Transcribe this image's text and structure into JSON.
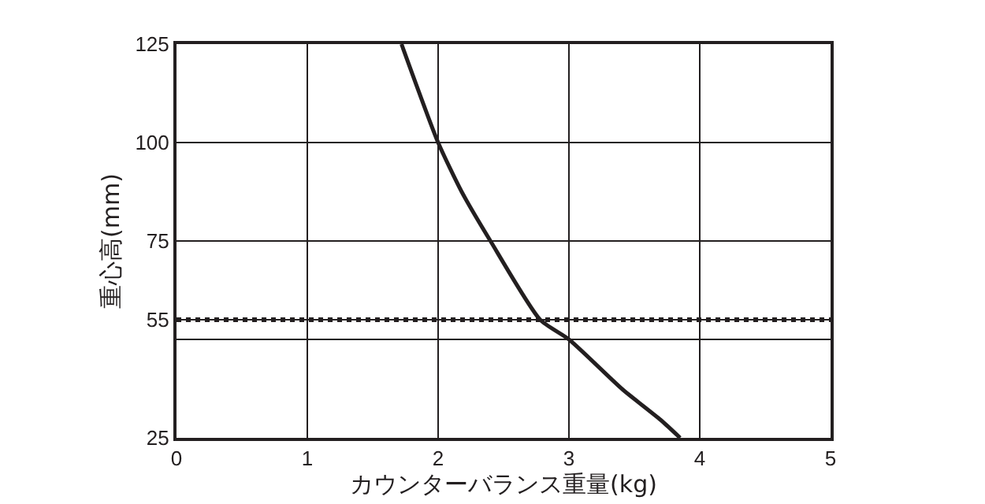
{
  "chart_data": {
    "type": "line",
    "xlabel": "カウンターバランス重量(kg)",
    "ylabel": "重心高(mm)",
    "x": [
      1.72,
      2.0,
      2.18,
      2.4,
      2.78,
      3.0,
      3.41,
      3.71,
      3.85
    ],
    "series": [
      {
        "color": "#231f20",
        "values": [
          125,
          100,
          87.5,
          75,
          55,
          50,
          37.3,
          29.3,
          25
        ]
      }
    ],
    "xlim": [
      0,
      5
    ],
    "xticks": [
      0,
      1,
      2,
      3,
      4,
      5
    ],
    "ylim": [
      25,
      125
    ],
    "yticks": [
      25,
      {
        "value": 50,
        "label": null
      },
      55,
      75,
      100,
      125
    ],
    "ref_lines": [
      {
        "axis": "y",
        "value": 55,
        "color": "#231f20",
        "line_style": "dotted"
      }
    ],
    "grid": true,
    "marker": "none",
    "line_style": "solid"
  }
}
